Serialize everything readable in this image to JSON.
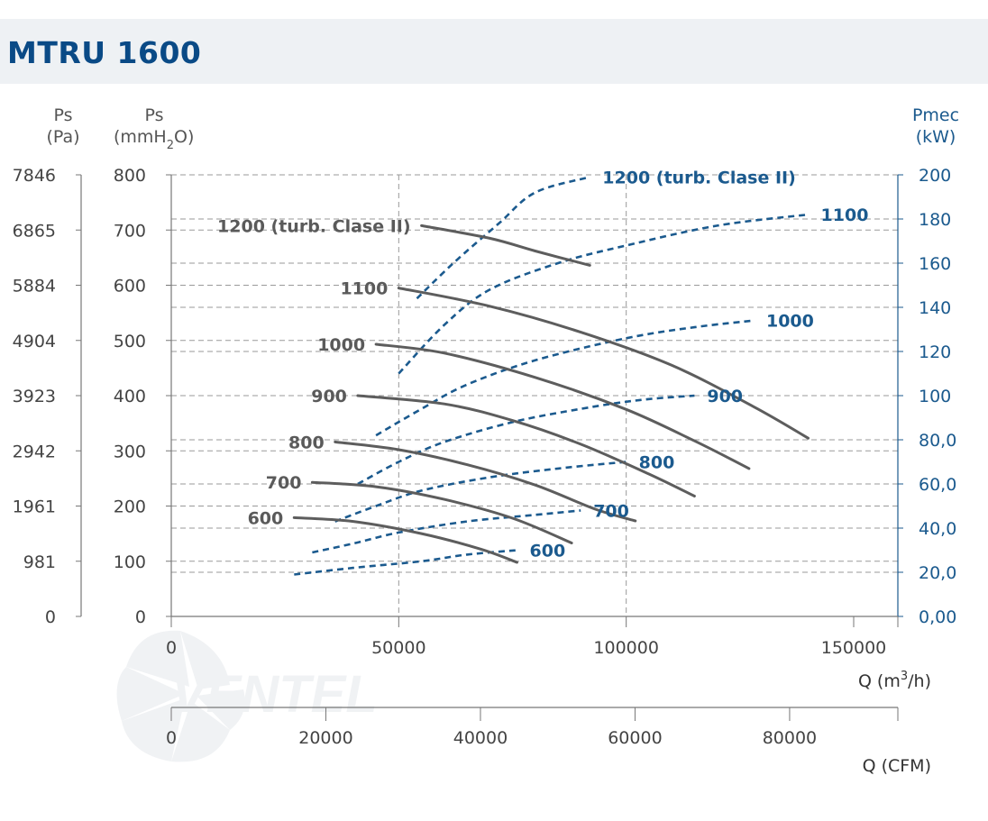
{
  "title": "MTRU 1600",
  "watermark": "VENTEL",
  "colors": {
    "pressure": "#5d5d5d",
    "power": "#1b5a8e",
    "title": "#0a4a86",
    "header_bg": "#eef1f4"
  },
  "axes": {
    "left_pa": {
      "title_line1": "Ps",
      "title_line2": "(Pa)",
      "ticks": [
        "0",
        "981",
        "1961",
        "2942",
        "3923",
        "4904",
        "5884",
        "6865",
        "7846"
      ]
    },
    "left_mmh2o": {
      "title_line1": "Ps",
      "title_line2_a": "(mmH",
      "title_line2_sub": "2",
      "title_line2_b": "O)",
      "ticks": [
        "0",
        "100",
        "200",
        "300",
        "400",
        "500",
        "600",
        "700",
        "800"
      ]
    },
    "right_pmec": {
      "title_line1": "Pmec",
      "title_line2": "(kW)",
      "ticks": [
        "0,00",
        "20,0",
        "40,0",
        "60,0",
        "80,0",
        "100",
        "120",
        "140",
        "160",
        "180",
        "200"
      ]
    },
    "bottom_m3h": {
      "title_a": "Q (m",
      "title_sup": "3",
      "title_b": "/h)",
      "ticks": [
        "0",
        "50000",
        "100000",
        "150000"
      ]
    },
    "bottom_cfm": {
      "title": "Q (CFM)",
      "ticks": [
        "0",
        "20000",
        "40000",
        "60000",
        "80000"
      ]
    }
  },
  "chart_data": {
    "type": "line",
    "xlabel": "Q (m3/h)",
    "xlim": [
      0,
      160000
    ],
    "ylim_left_mmH2O": [
      0,
      800
    ],
    "ylim_right_kW": [
      0,
      200
    ],
    "grid": true,
    "pressure_curves": [
      {
        "label": "1200 (turb. Clase II)",
        "points": [
          [
            55000,
            708
          ],
          [
            70000,
            685
          ],
          [
            80000,
            662
          ],
          [
            92000,
            636
          ]
        ]
      },
      {
        "label": "1100",
        "points": [
          [
            50000,
            595
          ],
          [
            70000,
            562
          ],
          [
            90000,
            515
          ],
          [
            110000,
            455
          ],
          [
            128000,
            380
          ],
          [
            140000,
            323
          ]
        ]
      },
      {
        "label": "1000",
        "points": [
          [
            45000,
            493
          ],
          [
            60000,
            477
          ],
          [
            80000,
            433
          ],
          [
            100000,
            375
          ],
          [
            115000,
            318
          ],
          [
            127000,
            268
          ]
        ]
      },
      {
        "label": "900",
        "points": [
          [
            41000,
            400
          ],
          [
            60000,
            385
          ],
          [
            75000,
            355
          ],
          [
            90000,
            312
          ],
          [
            105000,
            258
          ],
          [
            115000,
            218
          ]
        ]
      },
      {
        "label": "800",
        "points": [
          [
            36000,
            316
          ],
          [
            50000,
            302
          ],
          [
            65000,
            275
          ],
          [
            80000,
            238
          ],
          [
            93000,
            195
          ],
          [
            102000,
            173
          ]
        ]
      },
      {
        "label": "700",
        "points": [
          [
            31000,
            243
          ],
          [
            45000,
            235
          ],
          [
            60000,
            212
          ],
          [
            75000,
            178
          ],
          [
            88000,
            133
          ]
        ]
      },
      {
        "label": "600",
        "points": [
          [
            27000,
            179
          ],
          [
            40000,
            172
          ],
          [
            55000,
            150
          ],
          [
            68000,
            122
          ],
          [
            76000,
            98
          ]
        ]
      }
    ],
    "power_curves": [
      {
        "label": "1200 (turb. Clase II)",
        "points": [
          [
            54000,
            144
          ],
          [
            62000,
            160
          ],
          [
            72000,
            178
          ],
          [
            80000,
            192
          ],
          [
            92000,
            199
          ]
        ]
      },
      {
        "label": "1100",
        "points": [
          [
            50000,
            110
          ],
          [
            60000,
            132
          ],
          [
            70000,
            148
          ],
          [
            85000,
            160
          ],
          [
            100000,
            168
          ],
          [
            120000,
            177
          ],
          [
            140000,
            182
          ]
        ]
      },
      {
        "label": "1000",
        "points": [
          [
            45000,
            82
          ],
          [
            55000,
            94
          ],
          [
            65000,
            105
          ],
          [
            80000,
            116
          ],
          [
            100000,
            126
          ],
          [
            115000,
            131
          ],
          [
            128000,
            134
          ]
        ]
      },
      {
        "label": "900",
        "points": [
          [
            41000,
            60
          ],
          [
            50000,
            70
          ],
          [
            60000,
            79
          ],
          [
            75000,
            88
          ],
          [
            90000,
            94
          ],
          [
            103000,
            98
          ],
          [
            115000,
            100
          ]
        ]
      },
      {
        "label": "800",
        "points": [
          [
            36000,
            43
          ],
          [
            45000,
            50
          ],
          [
            55000,
            57
          ],
          [
            70000,
            63
          ],
          [
            85000,
            67
          ],
          [
            100000,
            70
          ]
        ]
      },
      {
        "label": "700",
        "points": [
          [
            31000,
            29
          ],
          [
            40000,
            33
          ],
          [
            50000,
            38
          ],
          [
            65000,
            43
          ],
          [
            80000,
            46
          ],
          [
            90000,
            48
          ]
        ]
      },
      {
        "label": "600",
        "points": [
          [
            27000,
            19
          ],
          [
            40000,
            22
          ],
          [
            55000,
            25
          ],
          [
            65000,
            28
          ],
          [
            76000,
            30
          ]
        ]
      }
    ]
  }
}
